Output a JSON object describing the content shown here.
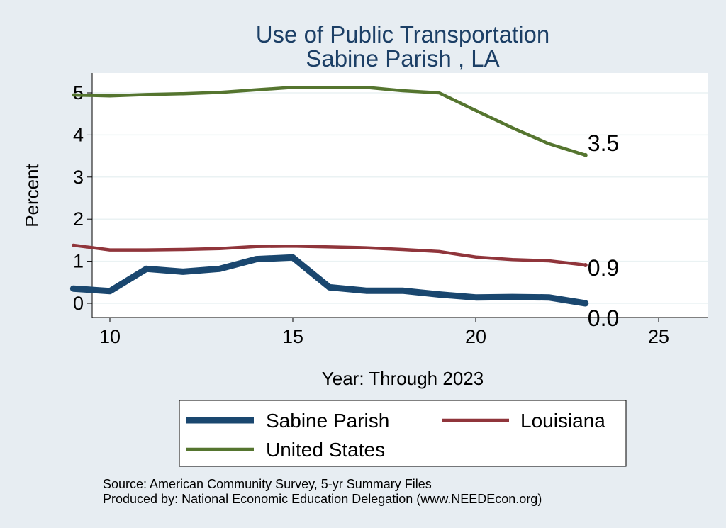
{
  "chart_data": {
    "type": "line",
    "title": "Use of Public Transportation",
    "subtitle": "Sabine Parish , LA",
    "xlabel": "Year: Through 2023",
    "ylabel": "Percent",
    "xlim": [
      9,
      25
    ],
    "ylim": [
      0,
      5.2
    ],
    "xticks": [
      10,
      15,
      20,
      25
    ],
    "yticks": [
      0,
      1,
      2,
      3,
      4,
      5
    ],
    "grid": true,
    "legend_position": "bottom",
    "x": [
      9,
      10,
      11,
      12,
      13,
      14,
      15,
      16,
      17,
      18,
      19,
      20,
      21,
      22,
      23
    ],
    "series": [
      {
        "name": "Sabine Parish",
        "color": "#1a476f",
        "values": [
          0.35,
          0.29,
          0.82,
          0.75,
          0.82,
          1.05,
          1.09,
          0.38,
          0.3,
          0.3,
          0.21,
          0.14,
          0.15,
          0.14,
          0.0
        ],
        "end_label": "0.0"
      },
      {
        "name": "Louisiana",
        "color": "#90353b",
        "values": [
          1.38,
          1.27,
          1.27,
          1.28,
          1.3,
          1.35,
          1.36,
          1.34,
          1.32,
          1.28,
          1.23,
          1.1,
          1.04,
          1.01,
          0.91
        ],
        "end_label": "0.9"
      },
      {
        "name": "United States",
        "color": "#55752f",
        "values": [
          4.95,
          4.93,
          4.96,
          4.98,
          5.01,
          5.07,
          5.13,
          5.13,
          5.13,
          5.05,
          5.0,
          4.58,
          4.17,
          3.79,
          3.52
        ],
        "end_label": "3.5"
      }
    ]
  },
  "footer": {
    "source": "Source: American Community Survey, 5-yr Summary Files",
    "produced_by": "Produced by: National Economic Education Delegation (www.NEEDEcon.org)"
  }
}
